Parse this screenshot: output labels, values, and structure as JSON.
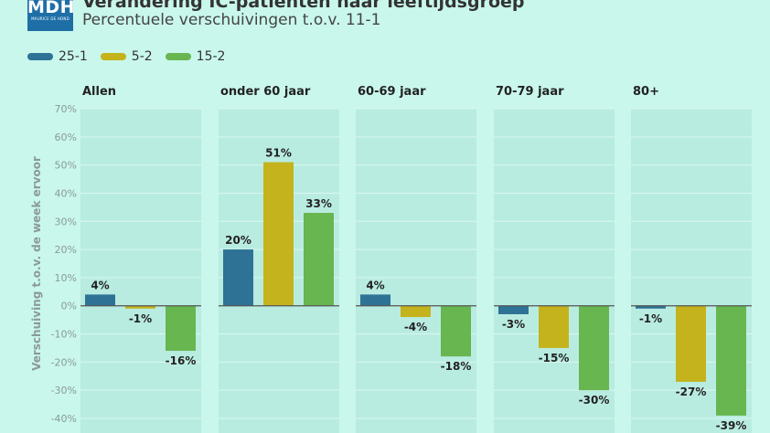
{
  "header": {
    "logo_text": "MDH",
    "logo_subtext": "MAURICE DE HOND",
    "title": "Verandering IC-patiënten naar leeftijdsgroep",
    "subtitle": "Percentuele verschuivingen t.o.v. 11-1"
  },
  "colors": {
    "background": "#c9f7ec",
    "panel": "#b9ece1",
    "series": [
      "#2e7296",
      "#c4b31c",
      "#67b64f"
    ]
  },
  "chart_data": {
    "type": "bar",
    "title": "Verandering IC-patiënten naar leeftijdsgroep",
    "subtitle": "Percentuele verschuivingen t.o.v. 11-1",
    "ylabel": "Verschuiving t.o.v. de week ervoor",
    "ylim": [
      -40,
      70
    ],
    "yticks": [
      70,
      60,
      50,
      40,
      30,
      20,
      10,
      0,
      -10,
      -20,
      -30,
      -40
    ],
    "ytick_labels": [
      "70%",
      "60%",
      "50%",
      "40%",
      "30%",
      "20%",
      "10%",
      "0%",
      "-10%",
      "-20%",
      "-30%",
      "-40%"
    ],
    "legend_position": "top-left",
    "grid": true,
    "series_names": [
      "25-1",
      "5-2",
      "15-2"
    ],
    "panels": [
      {
        "label": "Allen",
        "values": [
          4,
          -1,
          -16
        ],
        "value_labels": [
          "4%",
          "-1%",
          "-16%"
        ]
      },
      {
        "label": "onder 60 jaar",
        "values": [
          20,
          51,
          33
        ],
        "value_labels": [
          "20%",
          "51%",
          "33%"
        ]
      },
      {
        "label": "60-69 jaar",
        "values": [
          4,
          -4,
          -18
        ],
        "value_labels": [
          "4%",
          "-4%",
          "-18%"
        ]
      },
      {
        "label": "70-79 jaar",
        "values": [
          -3,
          -15,
          -30
        ],
        "value_labels": [
          "-3%",
          "-15%",
          "-30%"
        ]
      },
      {
        "label": "80+",
        "values": [
          -1,
          -27,
          -39
        ],
        "value_labels": [
          "-1%",
          "-27%",
          "-39%"
        ]
      }
    ]
  }
}
